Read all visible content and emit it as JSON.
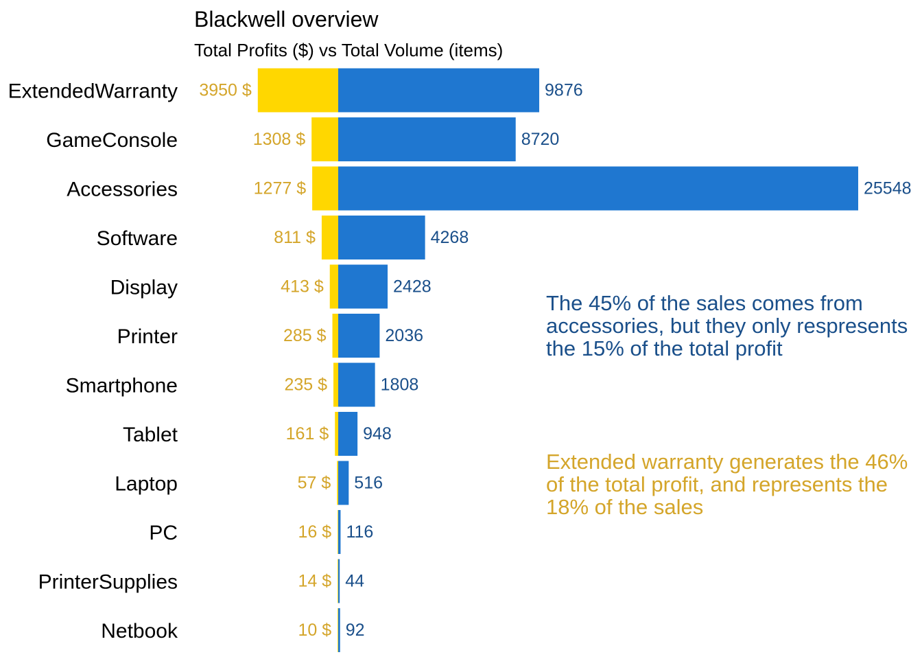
{
  "chart_data": {
    "type": "bar",
    "title": "Blackwell overview",
    "subtitle": "Total Profits ($) vs Total Volume (items)",
    "categories": [
      "ExtendedWarranty",
      "GameConsole",
      "Accessories",
      "Software",
      "Display",
      "Printer",
      "Smartphone",
      "Tablet",
      "Laptop",
      "PC",
      "PrinterSupplies",
      "Netbook"
    ],
    "series": [
      {
        "key": "profit",
        "values": [
          3950,
          1308,
          1277,
          811,
          413,
          285,
          235,
          161,
          57,
          16,
          14,
          10
        ],
        "labels": [
          "3950 $",
          "1308 $",
          "1277 $",
          "811 $",
          "413 $",
          "285 $",
          "235 $",
          "161 $",
          "57 $",
          "16 $",
          "14 $",
          "10 $"
        ],
        "color": "#FFD700",
        "label_color": "#D4A52A",
        "direction": "left"
      },
      {
        "key": "volume",
        "values": [
          9876,
          8720,
          25548,
          4268,
          2428,
          2036,
          1808,
          948,
          516,
          116,
          44,
          92
        ],
        "labels": [
          "9876",
          "8720",
          "25548",
          "4268",
          "2428",
          "2036",
          "1808",
          "948",
          "516",
          "116",
          "44",
          "92"
        ],
        "color": "#1F77D0",
        "label_color": "#1A4F8A",
        "direction": "right"
      }
    ],
    "grid": false,
    "legend": "none"
  },
  "annotations": {
    "volume_note": "The 45% of the sales comes from accessories, but they only respresents the 15% of the total profit",
    "profit_note": "Extended warranty generates the 46% of the total profit, and represents the 18% of the sales"
  },
  "colors": {
    "volume_note": "#1A4F8A",
    "profit_note": "#D4A52A"
  }
}
